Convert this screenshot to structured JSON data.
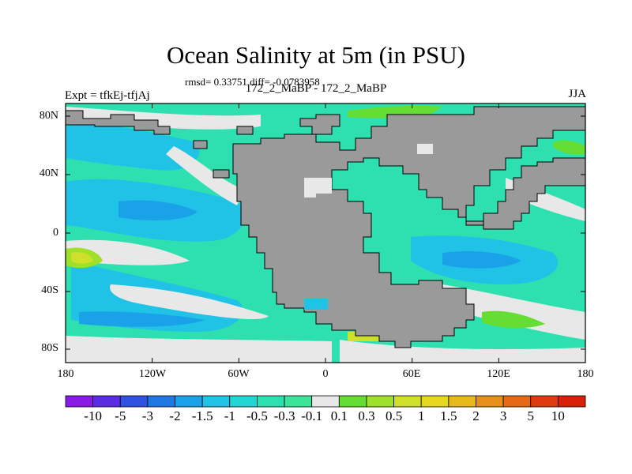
{
  "title": "Ocean Salinity at 5m (in PSU)",
  "stats": "rmsd= 0.33751 diff= -0.0783958",
  "subtitle": "172_2_MaBP - 172_2_MaBP",
  "left_label": "Expt = tfkEj-tfjAj",
  "right_label": "JJA",
  "lat_ticks": [
    "80N",
    "40N",
    "0",
    "40S",
    "80S"
  ],
  "lon_ticks": [
    "180",
    "120W",
    "60W",
    "0",
    "60E",
    "120E",
    "180"
  ],
  "colorbar": {
    "labels": [
      "-10",
      "-5",
      "-3",
      "-2",
      "-1.5",
      "-1",
      "-0.5",
      "-0.3",
      "-0.1",
      "0.1",
      "0.3",
      "0.5",
      "1",
      "1.5",
      "2",
      "3",
      "5",
      "10"
    ],
    "colors": [
      "#8a1ae6",
      "#5a2ee0",
      "#2f52e0",
      "#1f78e3",
      "#1aa2e8",
      "#20c3e6",
      "#22d6d4",
      "#2ee0b0",
      "#3ce49a",
      "#e8e8e8",
      "#66dd33",
      "#9ee02a",
      "#cfe02a",
      "#e6d81f",
      "#e6b81a",
      "#e69019",
      "#e66a15",
      "#e03a10",
      "#d82008"
    ]
  },
  "land_color": "#9a9a9a"
}
